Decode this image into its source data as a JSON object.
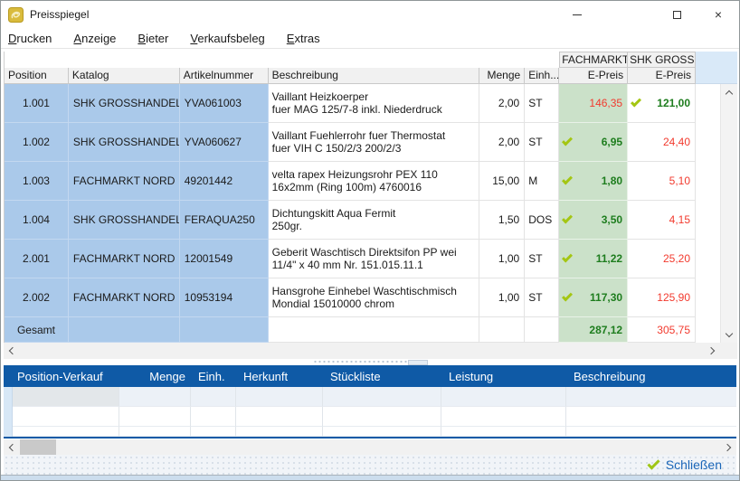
{
  "window": {
    "title": "Preisspiegel"
  },
  "menu": {
    "items": [
      {
        "label": "Drucken"
      },
      {
        "label": "Anzeige"
      },
      {
        "label": "Bieter"
      },
      {
        "label": "Verkaufsbeleg"
      },
      {
        "label": "Extras"
      }
    ]
  },
  "bidders": [
    "FACHMARKT",
    "SHK GROSSH"
  ],
  "table": {
    "columns": [
      "Position",
      "Katalog",
      "Artikelnummer",
      "Beschreibung",
      "Menge",
      "Einh...",
      "E-Preis",
      "E-Preis"
    ],
    "rows": [
      {
        "position": "1.001",
        "katalog": "SHK GROSSHANDEL",
        "artikelnummer": "YVA061003",
        "beschreibung": [
          "Vaillant Heizkoerper",
          "fuer MAG 125/7-8 inkl. Niederdruck"
        ],
        "menge": "2,00",
        "einheit": "ST",
        "price1": {
          "value": "146,35",
          "best": false
        },
        "price2": {
          "value": "121,00",
          "best": true
        }
      },
      {
        "position": "1.002",
        "katalog": "SHK GROSSHANDEL",
        "artikelnummer": "YVA060627",
        "beschreibung": [
          "Vaillant Fuehlerrohr fuer Thermostat",
          "fuer VIH C 150/2/3 200/2/3"
        ],
        "menge": "2,00",
        "einheit": "ST",
        "price1": {
          "value": "6,95",
          "best": true
        },
        "price2": {
          "value": "24,40",
          "best": false
        }
      },
      {
        "position": "1.003",
        "katalog": "FACHMARKT NORD",
        "artikelnummer": "49201442",
        "beschreibung": [
          "velta rapex Heizungsrohr PEX 110",
          "16x2mm  (Ring 100m) 4760016"
        ],
        "menge": "15,00",
        "einheit": "M",
        "price1": {
          "value": "1,80",
          "best": true
        },
        "price2": {
          "value": "5,10",
          "best": false
        }
      },
      {
        "position": "1.004",
        "katalog": "SHK GROSSHANDEL",
        "artikelnummer": "FERAQUA250",
        "beschreibung": [
          "Dichtungskitt Aqua Fermit",
          "250gr."
        ],
        "menge": "1,50",
        "einheit": "DOS",
        "price1": {
          "value": "3,50",
          "best": true
        },
        "price2": {
          "value": "4,15",
          "best": false
        }
      },
      {
        "position": "2.001",
        "katalog": "FACHMARKT NORD",
        "artikelnummer": "12001549",
        "beschreibung": [
          "Geberit Waschtisch Direktsifon PP wei",
          "11/4\" x 40 mm Nr. 151.015.11.1"
        ],
        "menge": "1,00",
        "einheit": "ST",
        "price1": {
          "value": "11,22",
          "best": true
        },
        "price2": {
          "value": "25,20",
          "best": false
        }
      },
      {
        "position": "2.002",
        "katalog": "FACHMARKT NORD",
        "artikelnummer": "10953194",
        "beschreibung": [
          "Hansgrohe Einhebel Waschtischmisch",
          "Mondial 15010000 chrom"
        ],
        "menge": "1,00",
        "einheit": "ST",
        "price1": {
          "value": "117,30",
          "best": true
        },
        "price2": {
          "value": "125,90",
          "best": false
        }
      }
    ],
    "total": {
      "label": "Gesamt",
      "price1": {
        "value": "287,12",
        "best": true
      },
      "price2": {
        "value": "305,75",
        "best": false
      }
    }
  },
  "lower_table": {
    "columns": [
      "Position-Verkauf",
      "Menge",
      "Einh.",
      "Herkunft",
      "Stückliste",
      "Leistung",
      "Beschreibung"
    ]
  },
  "footer": {
    "close_label": "Schließen"
  },
  "colors": {
    "best_price_bg": "#cbe1c9",
    "best_price_text": "#1e7d1e",
    "worse_price_text": "#f23a2e",
    "selected_cell_bg": "#aac9ea",
    "lower_header_bg": "#0f5aa6",
    "check_green": "#a4c613",
    "close_link": "#1b66b8",
    "app_icon_gold": "#d9bb3c"
  }
}
